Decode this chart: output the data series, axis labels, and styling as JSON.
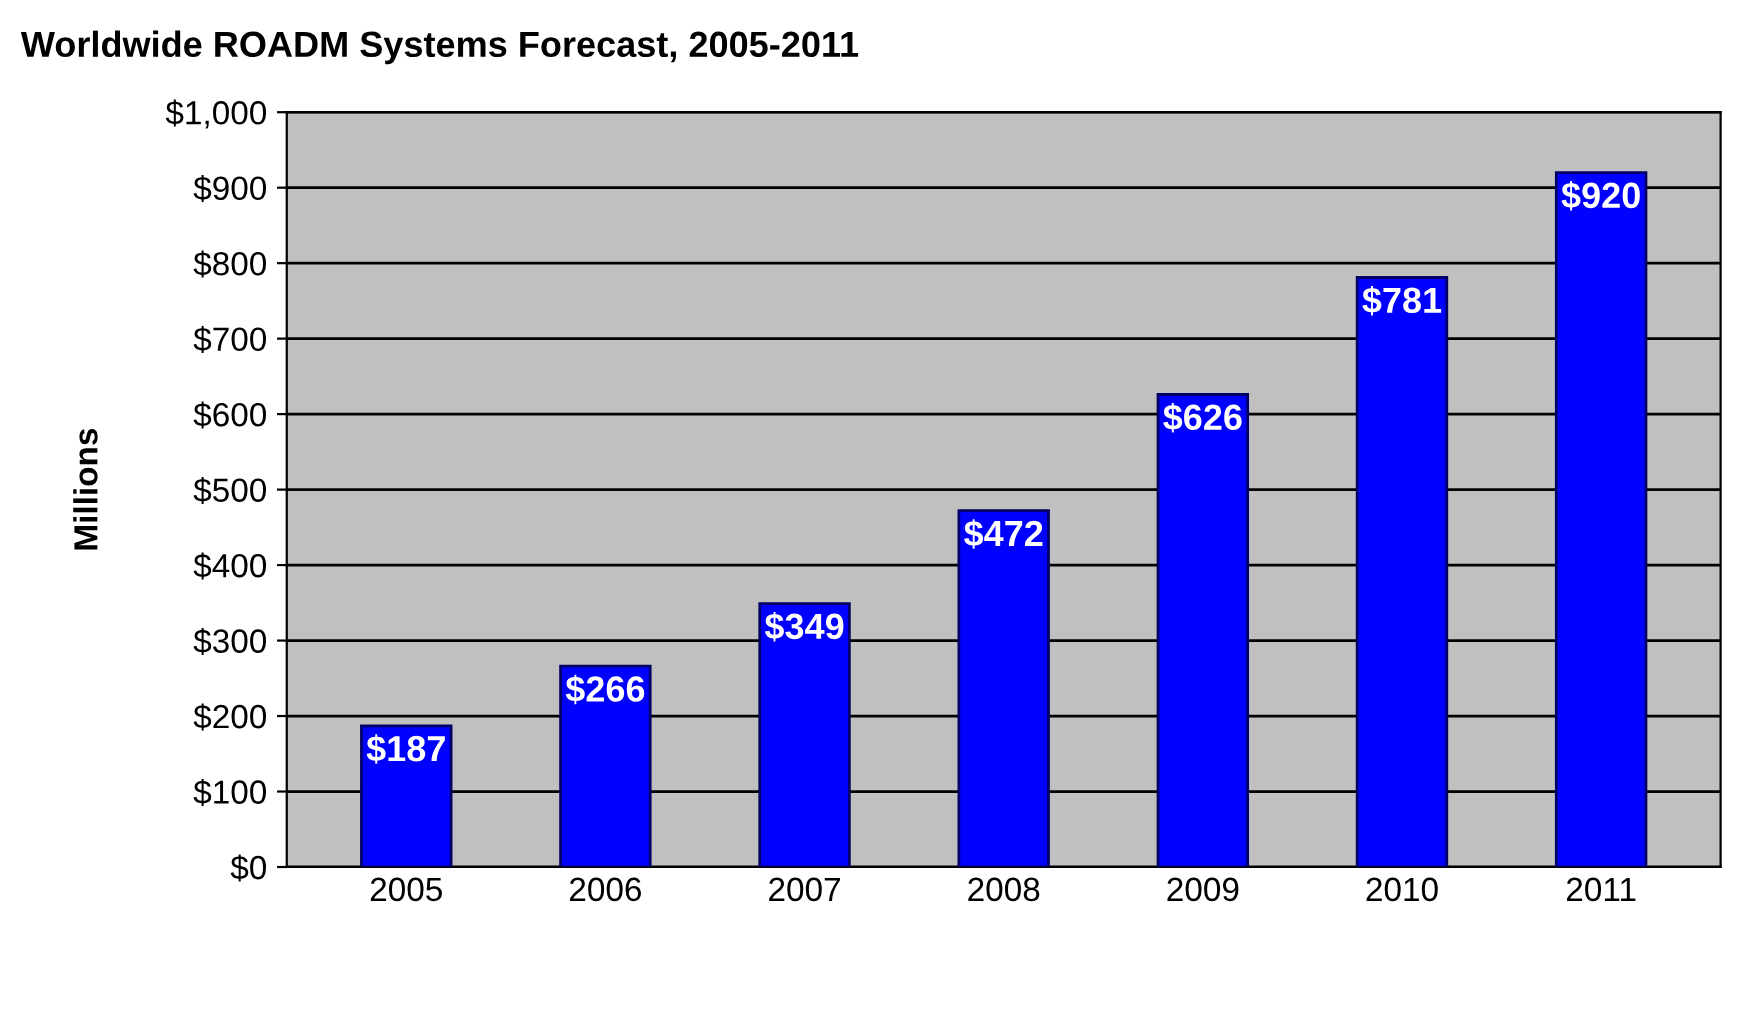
{
  "chart_data": {
    "type": "bar",
    "title": "Worldwide ROADM Systems Forecast, 2005-2011",
    "ylabel": "Millions",
    "categories": [
      "2005",
      "2006",
      "2007",
      "2008",
      "2009",
      "2010",
      "2011"
    ],
    "values": [
      187,
      266,
      349,
      472,
      626,
      781,
      920
    ],
    "value_labels": [
      "$187",
      "$266",
      "$349",
      "$472",
      "$626",
      "$781",
      "$920"
    ],
    "color": "#0000ff",
    "ylim": [
      0,
      1000
    ],
    "yticks": [
      {
        "value": 0,
        "label": "$0"
      },
      {
        "value": 100,
        "label": "$100"
      },
      {
        "value": 200,
        "label": "$200"
      },
      {
        "value": 300,
        "label": "$300"
      },
      {
        "value": 400,
        "label": "$400"
      },
      {
        "value": 500,
        "label": "$500"
      },
      {
        "value": 600,
        "label": "$600"
      },
      {
        "value": 700,
        "label": "$700"
      },
      {
        "value": 800,
        "label": "$800"
      },
      {
        "value": 900,
        "label": "$900"
      },
      {
        "value": 1000,
        "label": "$1,000"
      }
    ],
    "grid": "y",
    "legend": false
  }
}
